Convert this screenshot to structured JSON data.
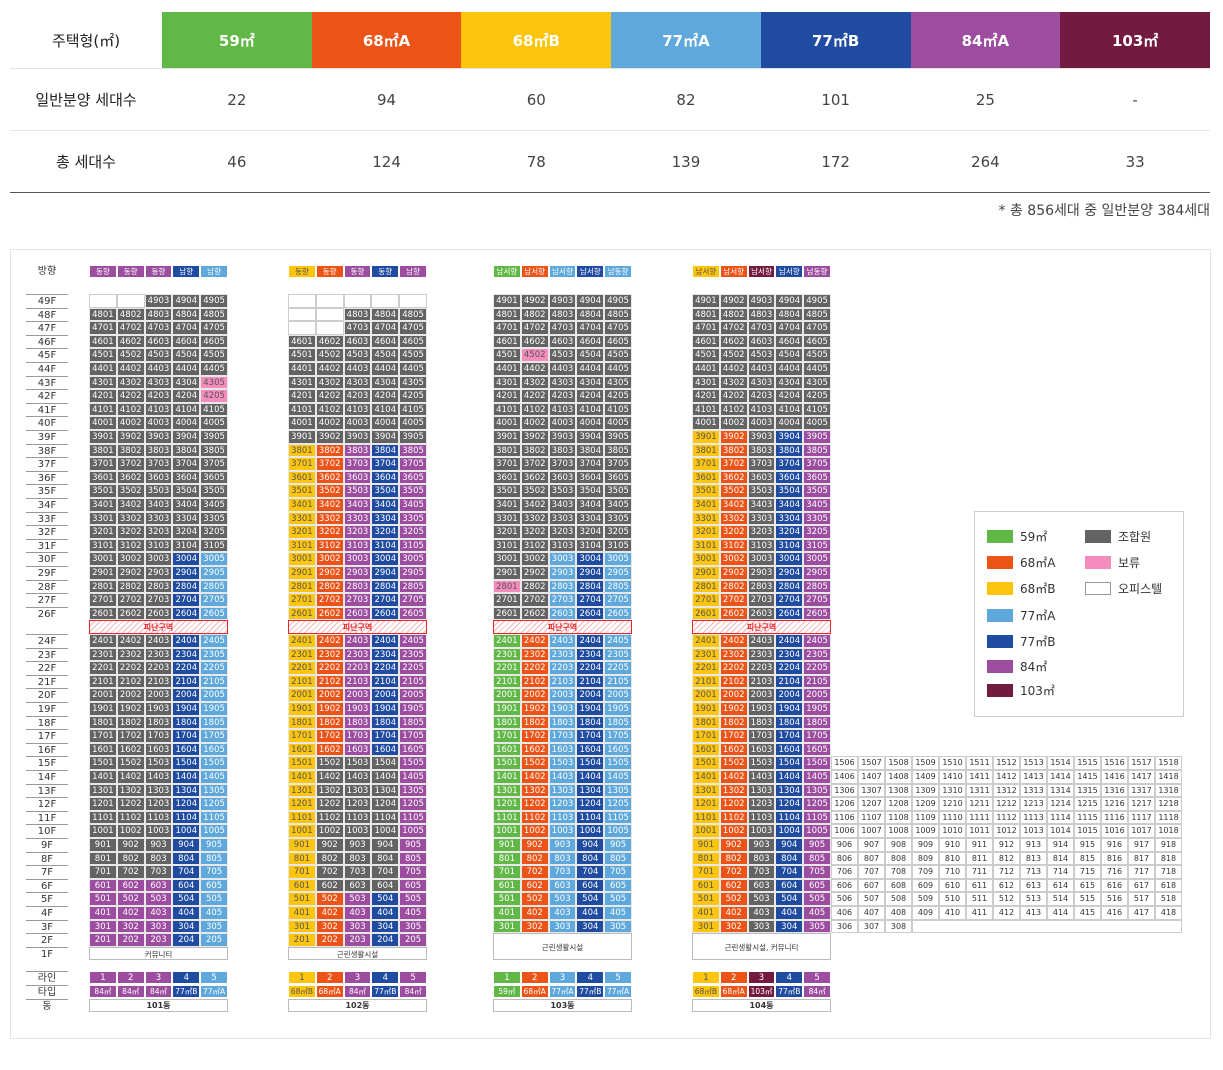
{
  "colors": {
    "59": "#61b847",
    "68A": "#ec5316",
    "68B": "#fdc50e",
    "77A": "#5ea8dc",
    "77B": "#1f4ba0",
    "84": "#9c4da0",
    "103": "#731a40",
    "member": "#636363",
    "hold": "#f58cbe",
    "office": "#ffffff"
  },
  "summary": {
    "header": {
      "label": "주택형(㎡)",
      "types": [
        "59㎡",
        "68㎡A",
        "68㎡B",
        "77㎡A",
        "77㎡B",
        "84㎡A",
        "103㎡"
      ]
    },
    "rows": [
      {
        "label": "일반분양 세대수",
        "values": [
          "22",
          "94",
          "60",
          "82",
          "101",
          "25",
          "-"
        ]
      },
      {
        "label": "총 세대수",
        "values": [
          "46",
          "124",
          "78",
          "139",
          "172",
          "264",
          "33"
        ]
      }
    ]
  },
  "note": "* 총 856세대 중 일반분양 384세대",
  "chart": {
    "direction_label": "방향",
    "line_label": "라인",
    "type_label": "타입",
    "dong_label": "동",
    "floor_labels": [
      "49F",
      "48F",
      "47F",
      "46F",
      "45F",
      "44F",
      "43F",
      "42F",
      "41F",
      "40F",
      "39F",
      "38F",
      "37F",
      "36F",
      "35F",
      "34F",
      "33F",
      "32F",
      "31F",
      "30F",
      "29F",
      "28F",
      "27F",
      "26F",
      "",
      "24F",
      "23F",
      "22F",
      "21F",
      "20F",
      "19F",
      "18F",
      "17F",
      "16F",
      "15F",
      "14F",
      "13F",
      "12F",
      "11F",
      "10F",
      "9F",
      "8F",
      "7F",
      "6F",
      "5F",
      "4F",
      "3F",
      "2F",
      "1F"
    ],
    "refuge_label": "피난구역",
    "buildings": [
      {
        "name": "101동",
        "directions": [
          "동향",
          "동향",
          "동향",
          "남향",
          "남향"
        ],
        "lines": [
          "1",
          "2",
          "3",
          "4",
          "5"
        ],
        "types": [
          "84㎡",
          "84㎡",
          "84㎡",
          "77㎡B",
          "77㎡A"
        ],
        "base_label": "커뮤니티"
      },
      {
        "name": "102동",
        "directions": [
          "동향",
          "동향",
          "동향",
          "동향",
          "남향"
        ],
        "lines": [
          "1",
          "2",
          "3",
          "4",
          "5"
        ],
        "types": [
          "68㎡B",
          "68㎡A",
          "84㎡",
          "77㎡B",
          "84㎡"
        ],
        "base_label": "근린생활시설"
      },
      {
        "name": "103동",
        "directions": [
          "남서향",
          "남서향",
          "남서향",
          "남서향",
          "남동향"
        ],
        "lines": [
          "1",
          "2",
          "3",
          "4",
          "5"
        ],
        "types": [
          "59㎡",
          "68㎡A",
          "77㎡A",
          "77㎡B",
          "77㎡A"
        ],
        "base_label": "근린생활시설"
      },
      {
        "name": "104동",
        "directions": [
          "남서향",
          "남서향",
          "남서향",
          "남서향",
          "남동향"
        ],
        "lines": [
          "1",
          "2",
          "3",
          "4",
          "5"
        ],
        "types": [
          "68㎡B",
          "68㎡A",
          "103㎡",
          "77㎡B",
          "84㎡"
        ],
        "base_label": "근린생활시설, 커뮤니티"
      }
    ]
  },
  "legend": [
    {
      "label": "59㎡",
      "key": "59"
    },
    {
      "label": "조합원",
      "key": "member"
    },
    {
      "label": "68㎡A",
      "key": "68A"
    },
    {
      "label": "보류",
      "key": "hold"
    },
    {
      "label": "68㎡B",
      "key": "68B"
    },
    {
      "label": "오피스텔",
      "key": "office"
    },
    {
      "label": "77㎡A",
      "key": "77A"
    },
    {
      "label": "77㎡B",
      "key": "77B"
    },
    {
      "label": "84㎡",
      "key": "84"
    },
    {
      "label": "103㎡",
      "key": "103"
    }
  ]
}
